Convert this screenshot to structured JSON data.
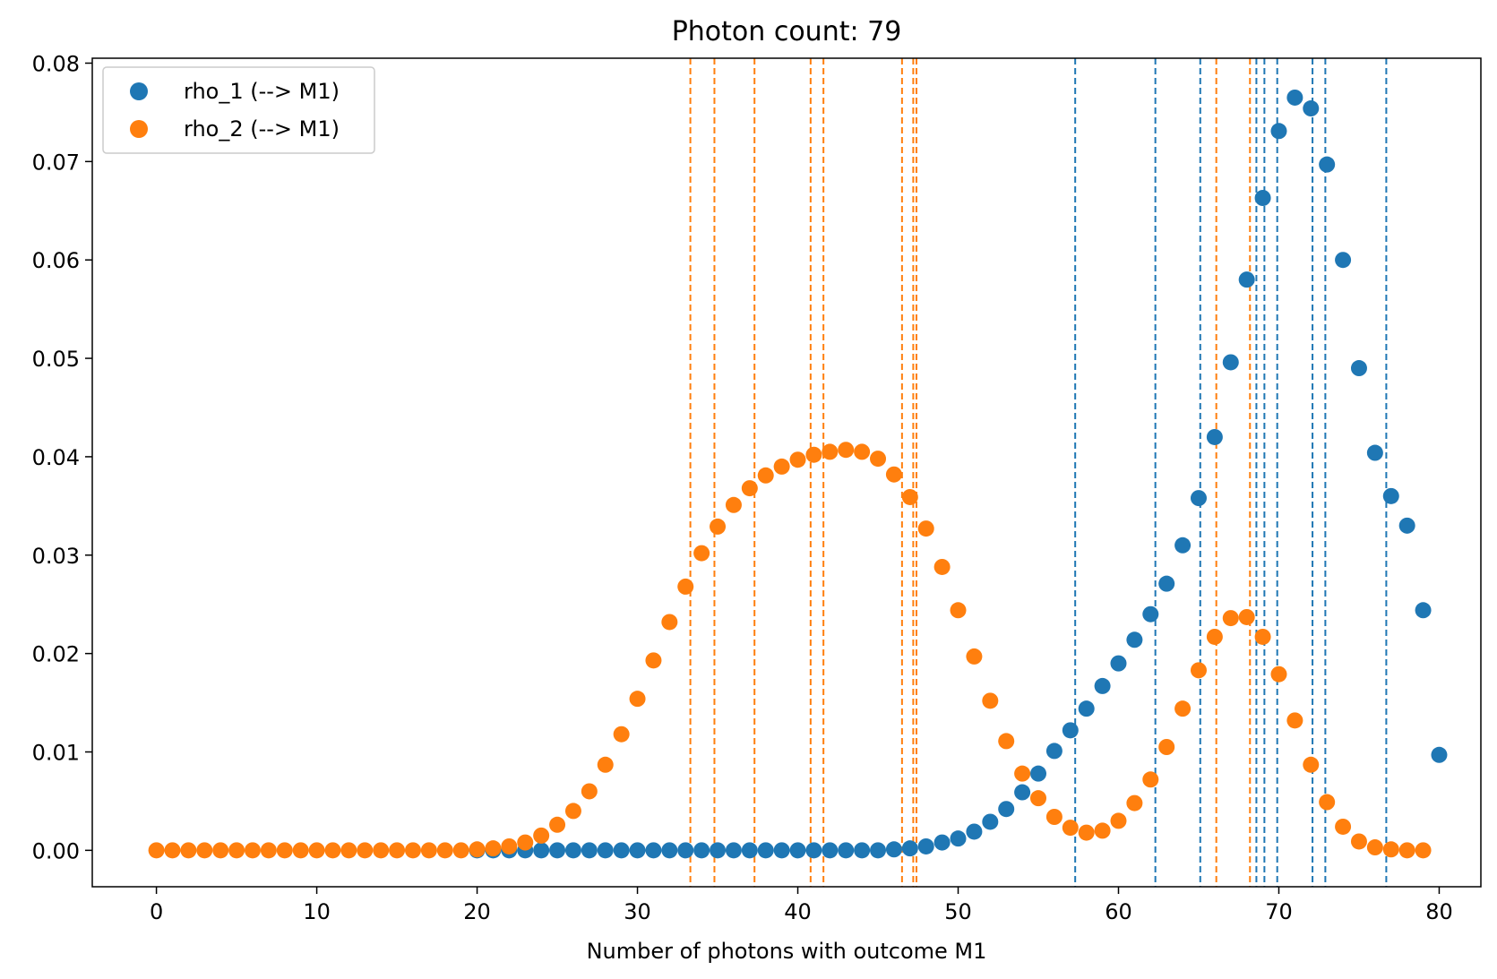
{
  "chart_data": {
    "type": "scatter",
    "title": "Photon count: 79",
    "xlabel": "Number of photons with outcome M1",
    "ylabel": "",
    "xlim": [
      -4,
      82.6
    ],
    "ylim": [
      -0.0037,
      0.0805
    ],
    "xticks": [
      0,
      10,
      20,
      30,
      40,
      50,
      60,
      70,
      80
    ],
    "xtick_labels": [
      "0",
      "10",
      "20",
      "30",
      "40",
      "50",
      "60",
      "70",
      "80"
    ],
    "yticks": [
      0.0,
      0.01,
      0.02,
      0.03,
      0.04,
      0.05,
      0.06,
      0.07,
      0.08
    ],
    "ytick_labels": [
      "0.00",
      "0.01",
      "0.02",
      "0.03",
      "0.04",
      "0.05",
      "0.06",
      "0.07",
      "0.08"
    ],
    "grid": false,
    "legend_position": "top-left",
    "series": [
      {
        "name": "rho_1 (--> M1)",
        "color": "#1f77b4",
        "x_start": 20,
        "values": [
          0.0,
          0.0,
          0.0,
          0.0,
          0.0,
          0.0,
          0.0,
          0.0,
          0.0,
          0.0,
          0.0,
          0.0,
          0.0,
          0.0,
          0.0,
          0.0,
          0.0,
          0.0,
          0.0,
          0.0,
          0.0,
          0.0,
          0.0,
          0.0,
          0.0,
          0.0,
          0.0001,
          0.0002,
          0.0004,
          0.0008,
          0.0012,
          0.0019,
          0.0029,
          0.0042,
          0.0059,
          0.0078,
          0.0101,
          0.0122,
          0.0144,
          0.0167,
          0.019,
          0.0214,
          0.024,
          0.0271,
          0.031,
          0.0358,
          0.042,
          0.0496,
          0.058,
          0.0663,
          0.0731,
          0.0765,
          0.0754,
          0.0697,
          0.06,
          0.049,
          0.0404,
          0.036,
          0.033,
          0.0244,
          0.0097
        ]
      },
      {
        "name": "rho_2 (--> M1)",
        "color": "#ff7f0e",
        "x_start": 0,
        "values": [
          0.0,
          0.0,
          0.0,
          0.0,
          0.0,
          0.0,
          0.0,
          0.0,
          0.0,
          0.0,
          0.0,
          0.0,
          0.0,
          0.0,
          0.0,
          0.0,
          0.0,
          0.0,
          0.0,
          0.0,
          0.0001,
          0.0002,
          0.0004,
          0.0008,
          0.0015,
          0.0026,
          0.004,
          0.006,
          0.0087,
          0.0118,
          0.0154,
          0.0193,
          0.0232,
          0.0268,
          0.0302,
          0.0329,
          0.0351,
          0.0368,
          0.0381,
          0.039,
          0.0397,
          0.0402,
          0.0405,
          0.0407,
          0.0405,
          0.0398,
          0.0382,
          0.0359,
          0.0327,
          0.0288,
          0.0244,
          0.0197,
          0.0152,
          0.0111,
          0.0078,
          0.0053,
          0.0034,
          0.0023,
          0.0018,
          0.002,
          0.003,
          0.0048,
          0.0072,
          0.0105,
          0.0144,
          0.0183,
          0.0217,
          0.0236,
          0.0237,
          0.0217,
          0.0179,
          0.0132,
          0.0087,
          0.0049,
          0.0024,
          0.0009,
          0.0003,
          0.0001,
          0.0,
          0.0
        ]
      }
    ],
    "vertical_lines": [
      {
        "color": "#ff7f0e",
        "style": "dashed",
        "x": [
          33.3,
          34.8,
          37.3,
          40.8,
          41.6,
          46.5,
          47.2,
          47.4,
          66.1,
          68.2
        ]
      },
      {
        "color": "#1f77b4",
        "style": "dashed",
        "x": [
          57.3,
          62.3,
          65.1,
          68.6,
          69.1,
          69.9,
          72.1,
          72.9,
          76.7
        ]
      }
    ]
  }
}
